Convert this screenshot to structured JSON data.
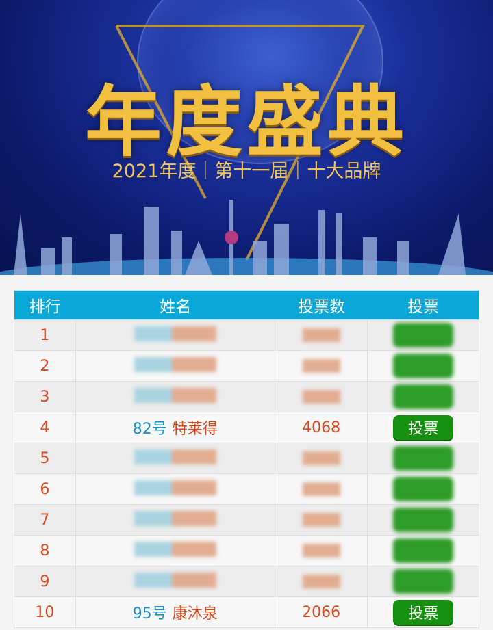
{
  "banner": {
    "title": "年度盛典",
    "subtitle": "2021年度｜第十一届｜十大品牌"
  },
  "table": {
    "headers": [
      "排行",
      "姓名",
      "投票数",
      "投票"
    ],
    "rows": [
      {
        "rank": "1",
        "blurred": true
      },
      {
        "rank": "2",
        "blurred": true
      },
      {
        "rank": "3",
        "blurred": true
      },
      {
        "rank": "4",
        "number": "82号",
        "name": "特莱得",
        "votes": "4068",
        "button": "投票"
      },
      {
        "rank": "5",
        "blurred": true
      },
      {
        "rank": "6",
        "blurred": true
      },
      {
        "rank": "7",
        "blurred": true
      },
      {
        "rank": "8",
        "blurred": true
      },
      {
        "rank": "9",
        "blurred": true
      },
      {
        "rank": "10",
        "number": "95号",
        "name": "康沐泉",
        "votes": "2066",
        "button": "投票"
      }
    ]
  },
  "colors": {
    "header": "#0aa8d9",
    "button": "#16900f",
    "accent": "#d9461a",
    "number": "#1a8fc4",
    "gold": "#f2c040"
  }
}
